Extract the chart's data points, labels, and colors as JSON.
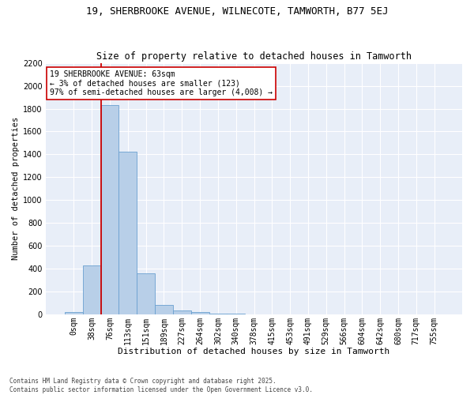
{
  "title1": "19, SHERBROOKE AVENUE, WILNECOTE, TAMWORTH, B77 5EJ",
  "title2": "Size of property relative to detached houses in Tamworth",
  "xlabel": "Distribution of detached houses by size in Tamworth",
  "ylabel": "Number of detached properties",
  "bin_labels": [
    "0sqm",
    "38sqm",
    "76sqm",
    "113sqm",
    "151sqm",
    "189sqm",
    "227sqm",
    "264sqm",
    "302sqm",
    "340sqm",
    "378sqm",
    "415sqm",
    "453sqm",
    "491sqm",
    "529sqm",
    "566sqm",
    "604sqm",
    "642sqm",
    "680sqm",
    "717sqm",
    "755sqm"
  ],
  "bar_heights": [
    20,
    425,
    1830,
    1420,
    360,
    80,
    35,
    20,
    5,
    3,
    2,
    1,
    1,
    1,
    1,
    1,
    1,
    1,
    1,
    1,
    1
  ],
  "bar_color": "#b8cfe8",
  "bar_edge_color": "#6aa0d0",
  "fig_bg_color": "#ffffff",
  "plot_bg_color": "#e8eef8",
  "grid_color": "#ffffff",
  "vline_color": "#cc0000",
  "vline_x_index": 2,
  "annotation_text": "19 SHERBROOKE AVENUE: 63sqm\n← 3% of detached houses are smaller (123)\n97% of semi-detached houses are larger (4,008) →",
  "annotation_box_facecolor": "#ffffff",
  "annotation_box_edgecolor": "#cc0000",
  "ylim": [
    0,
    2200
  ],
  "yticks": [
    0,
    200,
    400,
    600,
    800,
    1000,
    1200,
    1400,
    1600,
    1800,
    2000,
    2200
  ],
  "footer1": "Contains HM Land Registry data © Crown copyright and database right 2025.",
  "footer2": "Contains public sector information licensed under the Open Government Licence v3.0.",
  "title1_fontsize": 9.0,
  "title2_fontsize": 8.5,
  "xlabel_fontsize": 8.0,
  "ylabel_fontsize": 7.5,
  "tick_fontsize": 7.0,
  "annotation_fontsize": 7.0,
  "footer_fontsize": 5.5
}
